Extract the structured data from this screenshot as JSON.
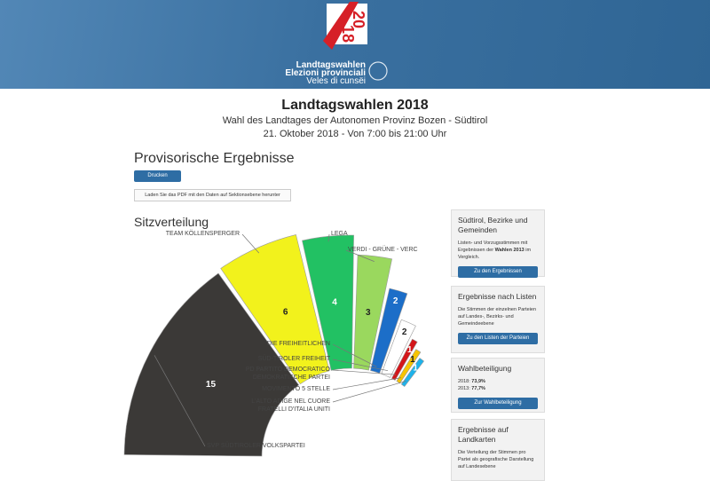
{
  "header": {
    "logo_top": "20",
    "logo_bottom": "18",
    "logo_lines": [
      "Landtagswahlen",
      "Elezioni provinciali",
      "Veles di cunsëi"
    ]
  },
  "page": {
    "title": "Landtagswahlen 2018",
    "subtitle": "Wahl des Landtages der Autonomen Provinz Bozen - Südtirol",
    "date": "21. Oktober 2018 - Von 7:00 bis 21:00 Uhr"
  },
  "results": {
    "heading": "Provisorische Ergebnisse",
    "print_button": "Drucken",
    "pdf_button": "Laden Sie das PDF mit den Daten auf Sektionsebene herunter"
  },
  "chart_data": {
    "type": "seats",
    "title": "Sitzverteilung",
    "categories": [
      "SVP SÜDTIROLER VOLKSPARTEI",
      "TEAM KÖLLENSPERGER",
      "LEGA",
      "VERDI - GRÜNE - VERC",
      "DIE FREIHEITLICHEN",
      "SÜD-TIROLER FREIHEIT",
      "PD PARTITO DEMOCRATICO\nDEMOKRATISCHE PARTEI",
      "MOVIMENTO 5 STELLE",
      "L'ALTO ADIGE NEL CUORE\nFRATELLI D'ITALIA UNITI"
    ],
    "values": [
      15,
      6,
      4,
      3,
      2,
      2,
      1,
      1,
      1
    ],
    "colors": [
      "#3b3937",
      "#f2f21c",
      "#22c163",
      "#9ad85e",
      "#1c6ec8",
      "#ffffff",
      "#d3161a",
      "#f6c400",
      "#1eb2ea"
    ]
  },
  "sidebar": [
    {
      "title": "Südtirol, Bezirke und Gemeinden",
      "text": [
        "Listen- und Vorzugsstimmen mit Ergebnissen der ",
        "Wahlen 2013",
        " im Vergleich."
      ],
      "button": "Zu den Ergebnissen"
    },
    {
      "title": "Ergebnisse nach Listen",
      "text": [
        "Die Stimmen der einzelnen Parteien auf Landes-, Bezirks- und Gemeindeebene"
      ],
      "button": "Zu den Listen der Parteien"
    },
    {
      "title": "Wahlbeteiligung",
      "turnout": [
        {
          "label": "2018: ",
          "value": "73,9%"
        },
        {
          "label": "2013: ",
          "value": "77,7%"
        }
      ],
      "button": "Zur Wahlbeteiligung"
    },
    {
      "title": "Ergebnisse auf Landkarten",
      "text": [
        "Die Verteilung der Stimmen pro Partei als geografische Darstellung auf Landesebene"
      ]
    }
  ]
}
